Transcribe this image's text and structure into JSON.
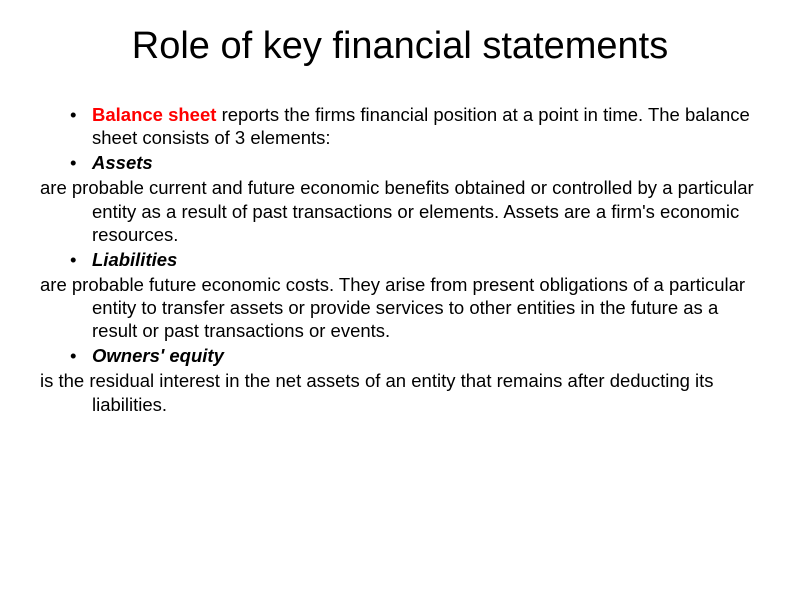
{
  "slide": {
    "title": "Role of key financial statements",
    "bullets": [
      {
        "highlight": "Balance sheet",
        "highlight_color": "#ff0000",
        "rest": " reports the firms financial position at a point in time. The balance sheet consists of 3 elements:"
      },
      {
        "bold_italic": "Assets"
      }
    ],
    "para1": "are probable current and future economic benefits obtained or controlled by a particular entity as a result of past transactions or elements. Assets are a firm's economic resources.",
    "bullet3": {
      "bold_italic": "Liabilities"
    },
    "para2": "are probable future economic costs. They arise from present obligations of a particular entity to transfer assets or provide services to other entities in the future as a result or past transactions or events.",
    "bullet4": {
      "bold_italic": "Owners' equity"
    },
    "para3": "is the residual interest in the net assets of an entity that remains after deducting its liabilities.",
    "colors": {
      "title_color": "#000000",
      "text_color": "#000000",
      "highlight_color": "#ff0000",
      "background": "#ffffff"
    },
    "fonts": {
      "title_size": 38,
      "body_size": 18.5,
      "family": "Arial"
    }
  }
}
